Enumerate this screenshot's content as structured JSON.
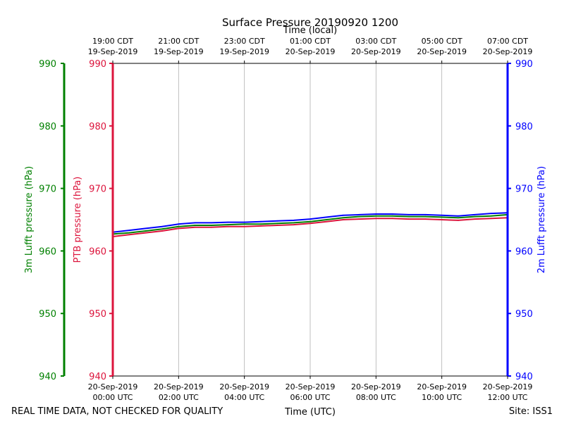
{
  "chart_data": {
    "type": "line",
    "title": "Surface Pressure 20190920 1200",
    "xlabel_bottom": "Time (UTC)",
    "xlabel_top": "Time (local)",
    "footer_left": "REAL TIME DATA, NOT CHECKED FOR QUALITY",
    "footer_right": "Site: ISS1",
    "x_unit": "hours since 20-Sep-2019 00:00 UTC",
    "xlim": [
      0,
      12
    ],
    "ylim": [
      940,
      990
    ],
    "y_ticks": [
      940,
      950,
      960,
      970,
      980,
      990
    ],
    "grid": "vertical at major x ticks",
    "bottom_ticks": [
      {
        "x": 0,
        "line1": "20-Sep-2019",
        "line2": "00:00 UTC"
      },
      {
        "x": 2,
        "line1": "20-Sep-2019",
        "line2": "02:00 UTC"
      },
      {
        "x": 4,
        "line1": "20-Sep-2019",
        "line2": "04:00 UTC"
      },
      {
        "x": 6,
        "line1": "20-Sep-2019",
        "line2": "06:00 UTC"
      },
      {
        "x": 8,
        "line1": "20-Sep-2019",
        "line2": "08:00 UTC"
      },
      {
        "x": 10,
        "line1": "20-Sep-2019",
        "line2": "10:00 UTC"
      },
      {
        "x": 12,
        "line1": "20-Sep-2019",
        "line2": "12:00 UTC"
      }
    ],
    "top_ticks": [
      {
        "x": 0,
        "line1": "19:00 CDT",
        "line2": "19-Sep-2019"
      },
      {
        "x": 2,
        "line1": "21:00 CDT",
        "line2": "19-Sep-2019"
      },
      {
        "x": 4,
        "line1": "23:00 CDT",
        "line2": "19-Sep-2019"
      },
      {
        "x": 6,
        "line1": "01:00 CDT",
        "line2": "20-Sep-2019"
      },
      {
        "x": 8,
        "line1": "03:00 CDT",
        "line2": "20-Sep-2019"
      },
      {
        "x": 10,
        "line1": "05:00 CDT",
        "line2": "20-Sep-2019"
      },
      {
        "x": 12,
        "line1": "07:00 CDT",
        "line2": "20-Sep-2019"
      }
    ],
    "axes": {
      "lufft3m": {
        "label": "3m Lufft pressure (hPa)",
        "color": "#008000"
      },
      "ptb": {
        "label": "PTB pressure (hPa)",
        "color": "#dc143c"
      },
      "lufft2m": {
        "label": "2m Lufft pressure (hPa)",
        "color": "#0000ff"
      }
    },
    "x": [
      0,
      0.5,
      1,
      1.5,
      2,
      2.5,
      3,
      3.5,
      4,
      4.5,
      5,
      5.5,
      6,
      6.5,
      7,
      7.5,
      8,
      8.5,
      9,
      9.5,
      10,
      10.5,
      11,
      11.5,
      12
    ],
    "series": [
      {
        "name": "3m Lufft pressure (hPa)",
        "color": "#008000",
        "values": [
          962.7,
          962.9,
          963.2,
          963.5,
          963.9,
          964.1,
          964.1,
          964.2,
          964.3,
          964.3,
          964.4,
          964.5,
          964.7,
          965.0,
          965.3,
          965.5,
          965.6,
          965.6,
          965.5,
          965.5,
          965.4,
          965.3,
          965.5,
          965.6,
          965.8
        ]
      },
      {
        "name": "PTB pressure (hPa)",
        "color": "#dc143c",
        "values": [
          962.3,
          962.6,
          962.9,
          963.2,
          963.6,
          963.8,
          963.8,
          963.9,
          963.9,
          964.0,
          964.1,
          964.2,
          964.4,
          964.7,
          965.0,
          965.1,
          965.2,
          965.2,
          965.1,
          965.1,
          965.0,
          964.9,
          965.1,
          965.2,
          965.3
        ]
      },
      {
        "name": "2m Lufft pressure (hPa)",
        "color": "#0000ff",
        "values": [
          963.0,
          963.3,
          963.6,
          963.9,
          964.3,
          964.5,
          964.5,
          964.6,
          964.6,
          964.7,
          964.8,
          964.9,
          965.1,
          965.4,
          965.7,
          965.8,
          965.9,
          965.9,
          965.8,
          965.8,
          965.7,
          965.6,
          965.8,
          966.0,
          966.1
        ]
      }
    ]
  }
}
